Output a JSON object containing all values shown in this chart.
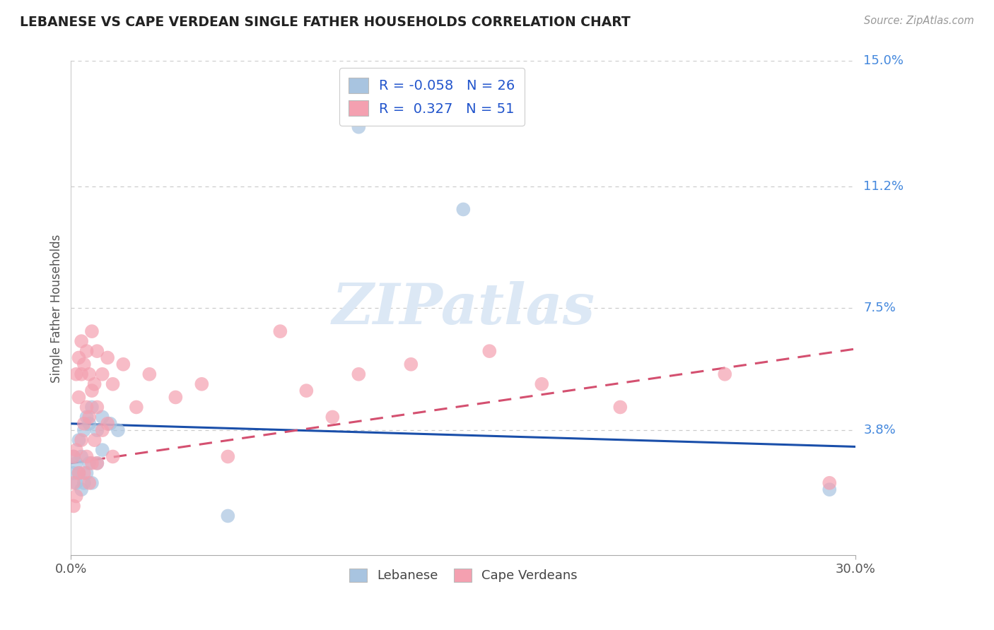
{
  "title": "LEBANESE VS CAPE VERDEAN SINGLE FATHER HOUSEHOLDS CORRELATION CHART",
  "source": "Source: ZipAtlas.com",
  "ylabel": "Single Father Households",
  "xlim": [
    0.0,
    0.3
  ],
  "ylim": [
    0.0,
    0.15
  ],
  "xtick_labels": [
    "0.0%",
    "30.0%"
  ],
  "ytick_labels_right": [
    {
      "val": 0.15,
      "label": "15.0%"
    },
    {
      "val": 0.112,
      "label": "11.2%"
    },
    {
      "val": 0.075,
      "label": "7.5%"
    },
    {
      "val": 0.038,
      "label": "3.8%"
    }
  ],
  "grid_color": "#cccccc",
  "background_color": "#ffffff",
  "lebanese_color": "#a8c4e0",
  "cape_verdean_color": "#f4a0b0",
  "lebanese_line_color": "#1a4faa",
  "cape_verdean_line_color": "#d45070",
  "lebanese_R": -0.058,
  "lebanese_N": 26,
  "cape_verdean_R": 0.327,
  "cape_verdean_N": 51,
  "lebanese_points": [
    [
      0.001,
      0.03
    ],
    [
      0.001,
      0.025
    ],
    [
      0.002,
      0.028
    ],
    [
      0.002,
      0.022
    ],
    [
      0.003,
      0.035
    ],
    [
      0.003,
      0.025
    ],
    [
      0.004,
      0.03
    ],
    [
      0.004,
      0.02
    ],
    [
      0.005,
      0.038
    ],
    [
      0.005,
      0.022
    ],
    [
      0.006,
      0.042
    ],
    [
      0.006,
      0.025
    ],
    [
      0.007,
      0.04
    ],
    [
      0.007,
      0.028
    ],
    [
      0.008,
      0.045
    ],
    [
      0.008,
      0.022
    ],
    [
      0.01,
      0.038
    ],
    [
      0.01,
      0.028
    ],
    [
      0.012,
      0.042
    ],
    [
      0.012,
      0.032
    ],
    [
      0.015,
      0.04
    ],
    [
      0.018,
      0.038
    ],
    [
      0.06,
      0.012
    ],
    [
      0.11,
      0.13
    ],
    [
      0.15,
      0.105
    ],
    [
      0.29,
      0.02
    ]
  ],
  "cape_verdean_points": [
    [
      0.001,
      0.03
    ],
    [
      0.001,
      0.022
    ],
    [
      0.001,
      0.015
    ],
    [
      0.002,
      0.055
    ],
    [
      0.002,
      0.032
    ],
    [
      0.002,
      0.018
    ],
    [
      0.003,
      0.06
    ],
    [
      0.003,
      0.048
    ],
    [
      0.003,
      0.025
    ],
    [
      0.004,
      0.065
    ],
    [
      0.004,
      0.055
    ],
    [
      0.004,
      0.035
    ],
    [
      0.005,
      0.058
    ],
    [
      0.005,
      0.04
    ],
    [
      0.005,
      0.025
    ],
    [
      0.006,
      0.062
    ],
    [
      0.006,
      0.045
    ],
    [
      0.006,
      0.03
    ],
    [
      0.007,
      0.055
    ],
    [
      0.007,
      0.042
    ],
    [
      0.007,
      0.022
    ],
    [
      0.008,
      0.068
    ],
    [
      0.008,
      0.05
    ],
    [
      0.008,
      0.028
    ],
    [
      0.009,
      0.052
    ],
    [
      0.009,
      0.035
    ],
    [
      0.01,
      0.062
    ],
    [
      0.01,
      0.045
    ],
    [
      0.01,
      0.028
    ],
    [
      0.012,
      0.055
    ],
    [
      0.012,
      0.038
    ],
    [
      0.014,
      0.06
    ],
    [
      0.014,
      0.04
    ],
    [
      0.016,
      0.052
    ],
    [
      0.016,
      0.03
    ],
    [
      0.02,
      0.058
    ],
    [
      0.025,
      0.045
    ],
    [
      0.03,
      0.055
    ],
    [
      0.04,
      0.048
    ],
    [
      0.05,
      0.052
    ],
    [
      0.06,
      0.03
    ],
    [
      0.08,
      0.068
    ],
    [
      0.09,
      0.05
    ],
    [
      0.1,
      0.042
    ],
    [
      0.11,
      0.055
    ],
    [
      0.13,
      0.058
    ],
    [
      0.16,
      0.062
    ],
    [
      0.18,
      0.052
    ],
    [
      0.21,
      0.045
    ],
    [
      0.25,
      0.055
    ],
    [
      0.29,
      0.022
    ]
  ]
}
